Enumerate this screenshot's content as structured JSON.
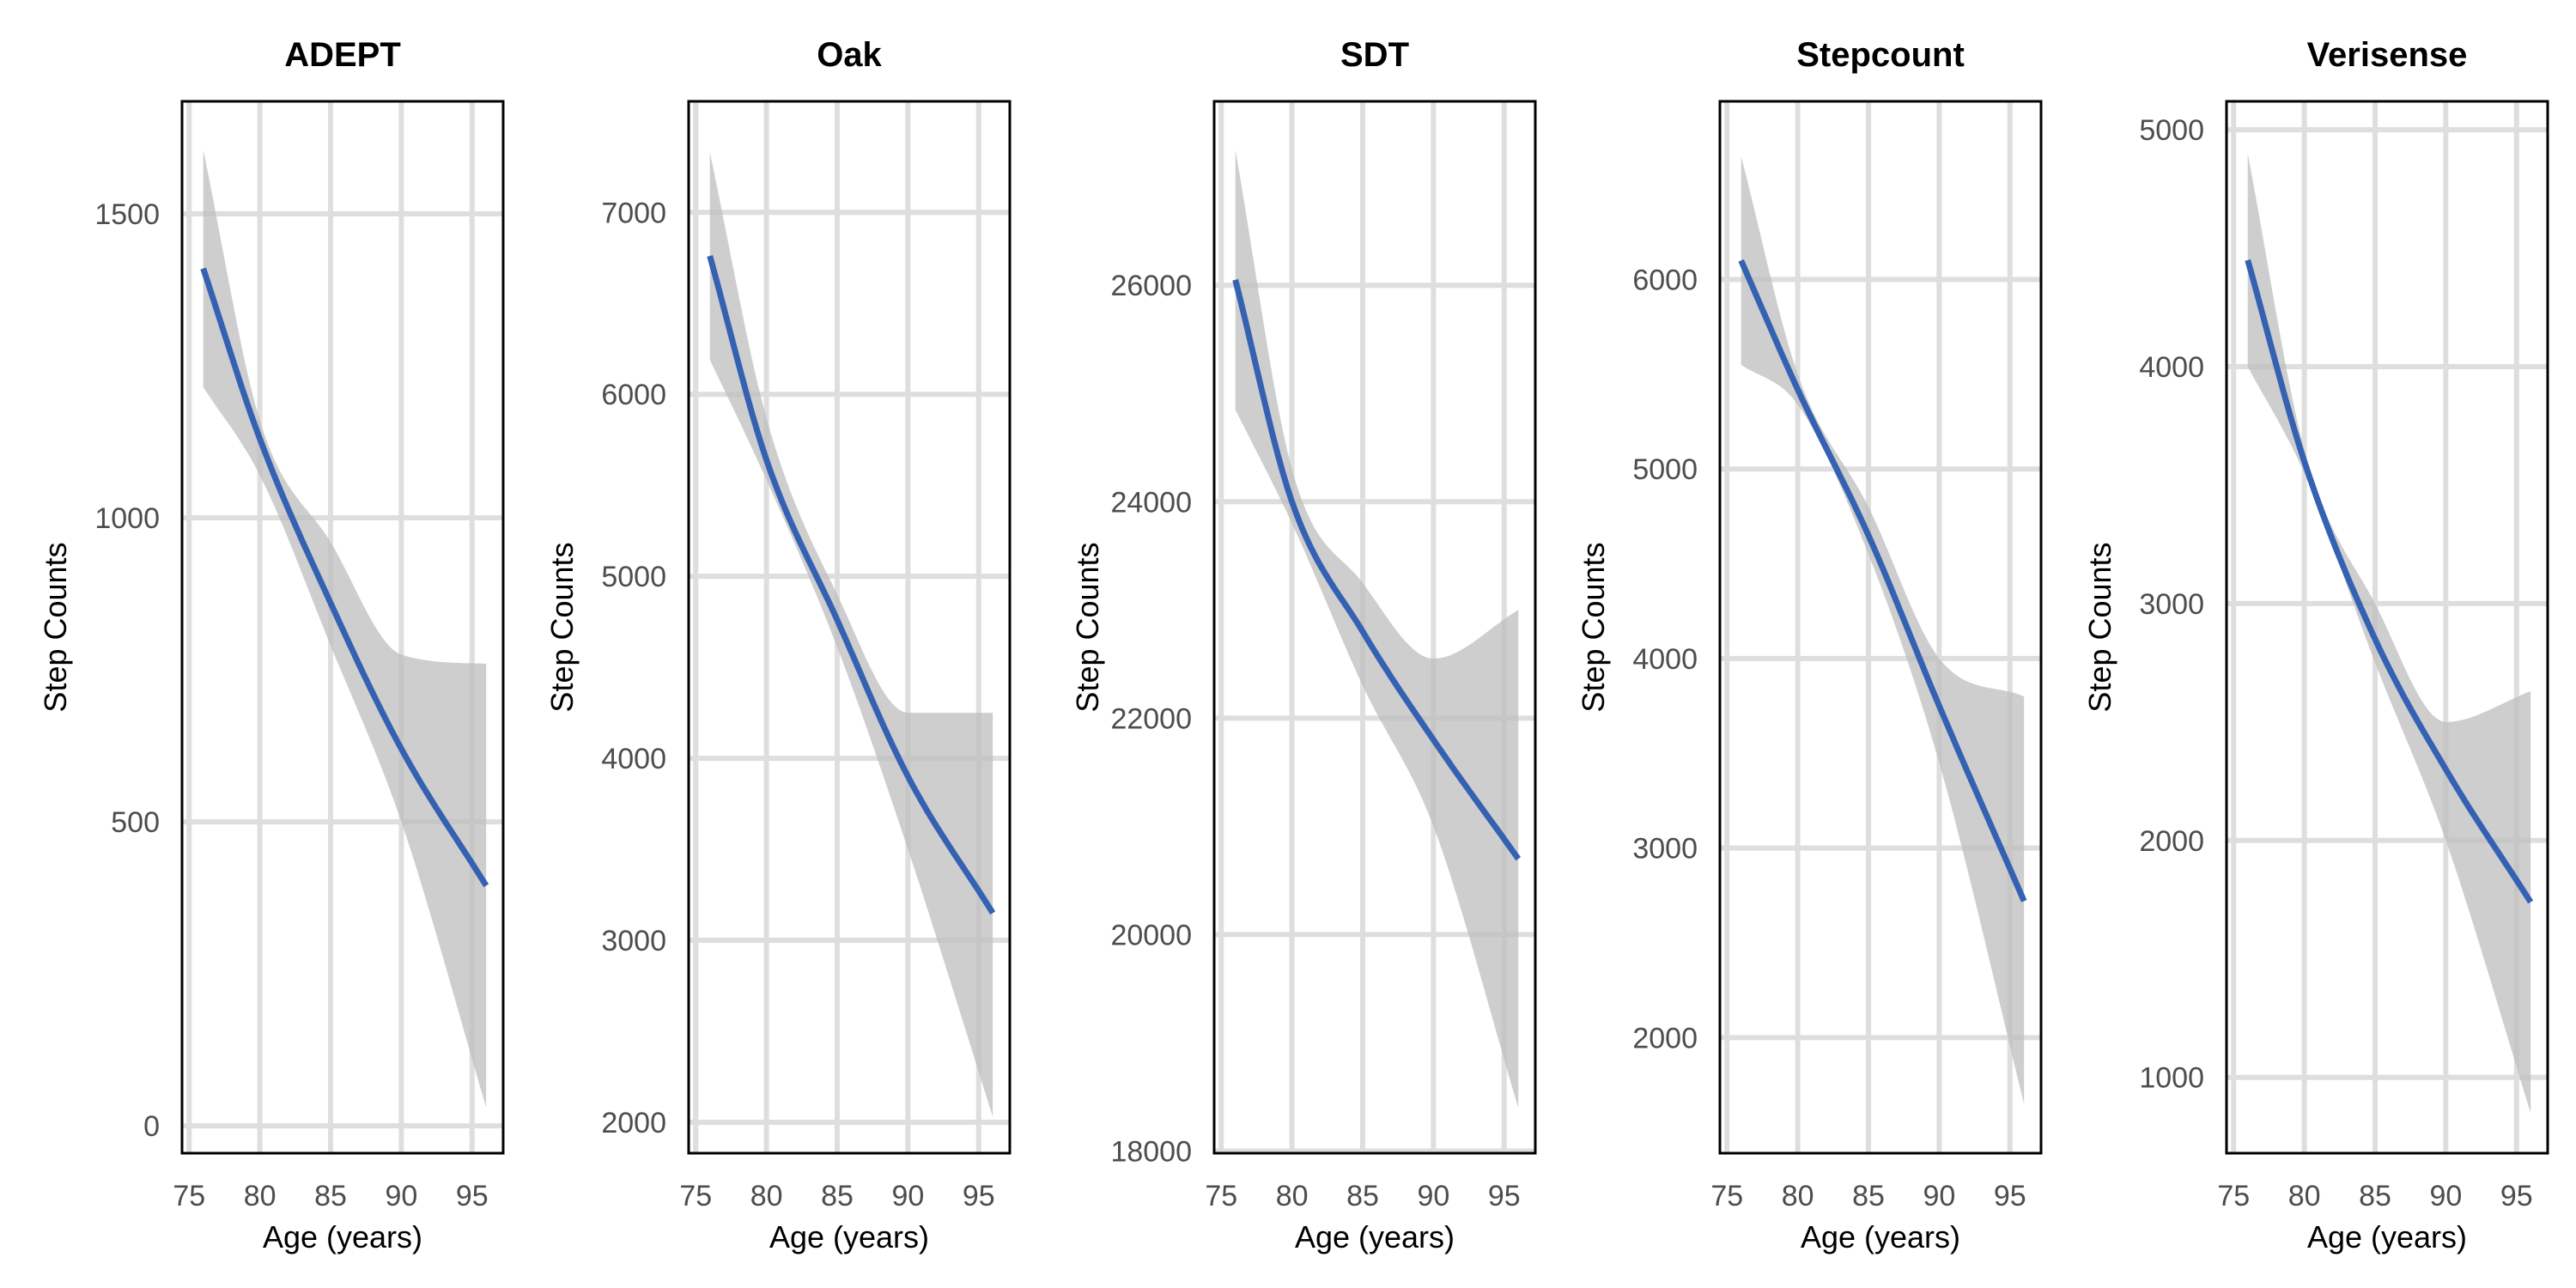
{
  "chart_data": [
    {
      "type": "line",
      "title": "ADEPT",
      "xlabel": "Age (years)",
      "ylabel": "Step Counts",
      "xlim": [
        74.5,
        97.2
      ],
      "ylim": [
        -45,
        1685
      ],
      "xticks": [
        75,
        80,
        85,
        90,
        95
      ],
      "xtick_labels": [
        "75",
        "80",
        "85",
        "90",
        "95"
      ],
      "yticks": [
        0,
        500,
        1000,
        1500
      ],
      "ytick_labels": [
        "0",
        "500",
        "1000",
        "1500"
      ],
      "x": [
        76,
        80,
        85,
        90,
        96
      ],
      "y": [
        1410,
        1130,
        860,
        620,
        395
      ],
      "ci_lower": [
        1215,
        1070,
        790,
        500,
        30
      ],
      "ci_upper": [
        1605,
        1160,
        960,
        775,
        760
      ]
    },
    {
      "type": "line",
      "title": "Oak",
      "xlabel": "Age (years)",
      "ylabel": "Step Counts",
      "xlim": [
        74.5,
        97.2
      ],
      "ylim": [
        1830,
        7610
      ],
      "xticks": [
        75,
        80,
        85,
        90,
        95
      ],
      "xtick_labels": [
        "75",
        "80",
        "85",
        "90",
        "95"
      ],
      "yticks": [
        2000,
        3000,
        4000,
        5000,
        6000,
        7000
      ],
      "ytick_labels": [
        "2000",
        "3000",
        "4000",
        "5000",
        "6000",
        "7000"
      ],
      "x": [
        76,
        80,
        85,
        90,
        96
      ],
      "y": [
        6760,
        5640,
        4760,
        3900,
        3150
      ],
      "ci_lower": [
        6190,
        5530,
        4610,
        3500,
        2030
      ],
      "ci_upper": [
        7330,
        5870,
        4900,
        4250,
        4250
      ]
    },
    {
      "type": "line",
      "title": "SDT",
      "xlabel": "Age (years)",
      "ylabel": "Step Counts",
      "xlim": [
        74.5,
        97.2
      ],
      "ylim": [
        17980,
        27700
      ],
      "xticks": [
        75,
        80,
        85,
        90,
        95
      ],
      "xtick_labels": [
        "75",
        "80",
        "85",
        "90",
        "95"
      ],
      "yticks": [
        18000,
        20000,
        22000,
        24000,
        26000
      ],
      "ytick_labels": [
        "18000",
        "20000",
        "22000",
        "24000",
        "26000"
      ],
      "x": [
        76,
        80,
        85,
        90,
        96
      ],
      "y": [
        26050,
        24000,
        22800,
        21800,
        20700
      ],
      "ci_lower": [
        24850,
        23800,
        22300,
        21000,
        18400
      ],
      "ci_upper": [
        27250,
        24300,
        23250,
        22550,
        23000
      ]
    },
    {
      "type": "line",
      "title": "Stepcount",
      "xlabel": "Age (years)",
      "ylabel": "Step Counts",
      "xlim": [
        74.5,
        97.2
      ],
      "ylim": [
        1390,
        6940
      ],
      "xticks": [
        75,
        80,
        85,
        90,
        95
      ],
      "xtick_labels": [
        "75",
        "80",
        "85",
        "90",
        "95"
      ],
      "yticks": [
        2000,
        3000,
        4000,
        5000,
        6000
      ],
      "ytick_labels": [
        "2000",
        "3000",
        "4000",
        "5000",
        "6000"
      ],
      "x": [
        76,
        80,
        85,
        90,
        96
      ],
      "y": [
        6100,
        5420,
        4650,
        3750,
        2720
      ],
      "ci_lower": [
        5550,
        5340,
        4550,
        3450,
        1650
      ],
      "ci_upper": [
        6650,
        5500,
        4800,
        4000,
        3800
      ]
    },
    {
      "type": "line",
      "title": "Verisense",
      "xlabel": "Age (years)",
      "ylabel": "Step Counts",
      "xlim": [
        74.5,
        97.2
      ],
      "ylim": [
        680,
        5120
      ],
      "xticks": [
        75,
        80,
        85,
        90,
        95
      ],
      "xtick_labels": [
        "75",
        "80",
        "85",
        "90",
        "95"
      ],
      "yticks": [
        1000,
        2000,
        3000,
        4000,
        5000
      ],
      "ytick_labels": [
        "1000",
        "2000",
        "3000",
        "4000",
        "5000"
      ],
      "x": [
        76,
        80,
        85,
        90,
        96
      ],
      "y": [
        4450,
        3600,
        2850,
        2300,
        1740
      ],
      "ci_lower": [
        4000,
        3550,
        2750,
        2000,
        850
      ],
      "ci_upper": [
        4900,
        3650,
        3000,
        2500,
        2630
      ]
    }
  ],
  "colors": {
    "line": "#3561b3",
    "ci_band": "#bdbdbd",
    "grid": "#dedede",
    "frame": "#000000"
  }
}
